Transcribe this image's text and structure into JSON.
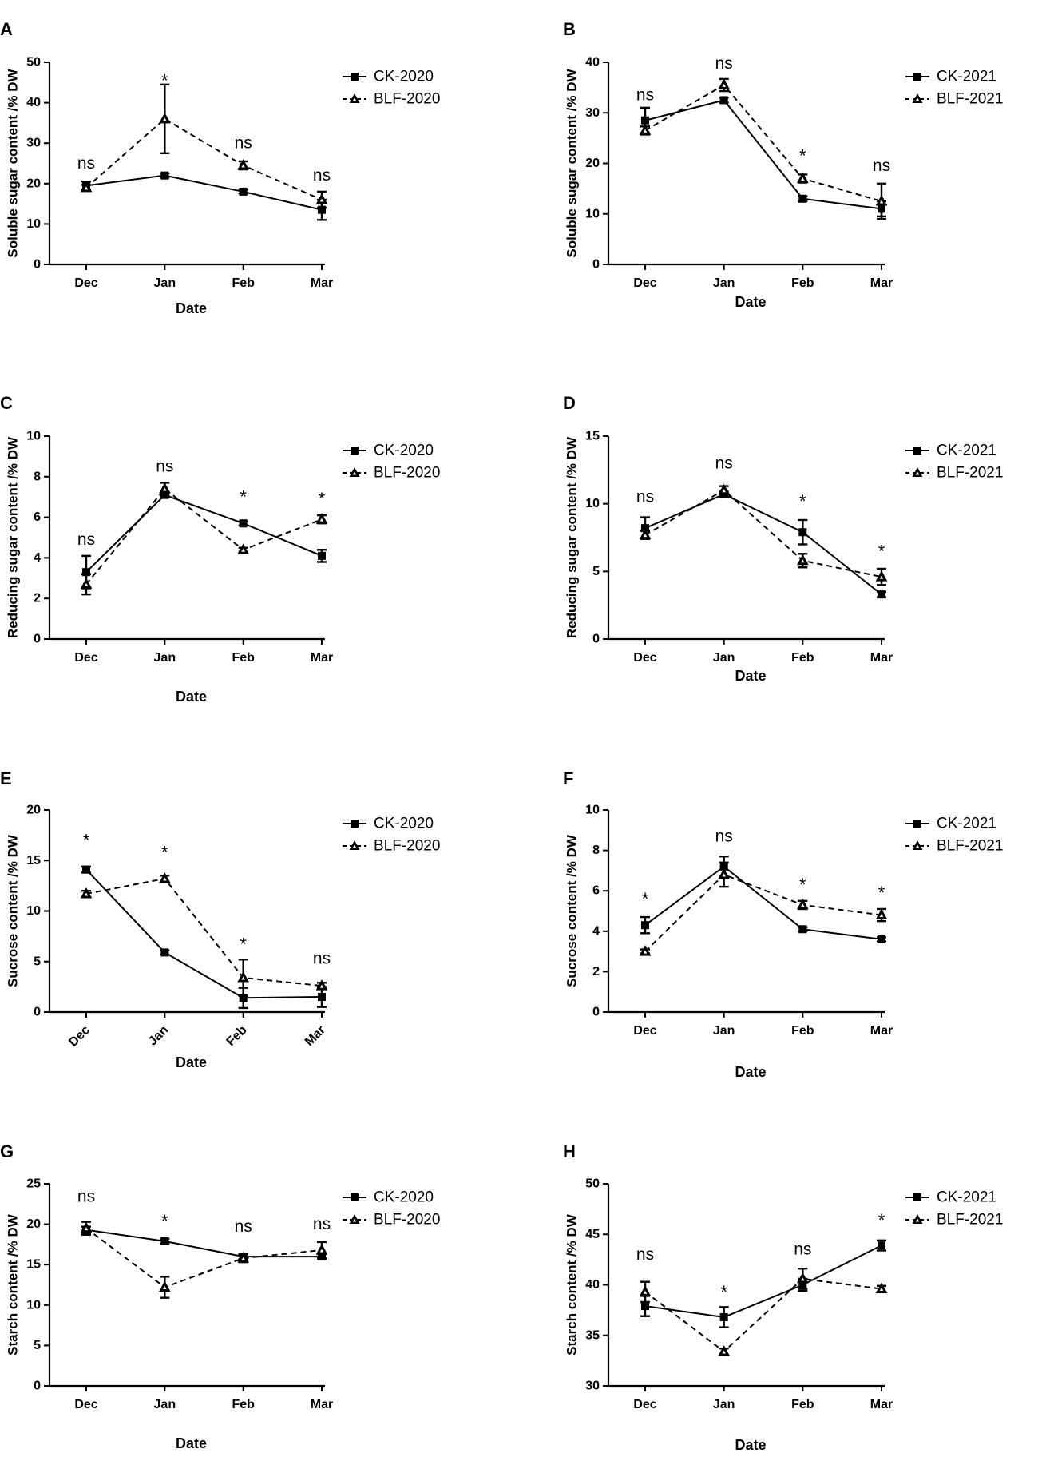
{
  "chart_data": [
    {
      "type": "line",
      "panel": "A",
      "title": "",
      "xlabel": "Date",
      "ylabel": "Soluble sugar content /% DW",
      "ylim": [
        0,
        50
      ],
      "yticks": [
        0,
        10,
        20,
        30,
        40,
        50
      ],
      "categories": [
        "Dec",
        "Jan",
        "Feb",
        "Mar"
      ],
      "rotate_x": false,
      "series": [
        {
          "name": "CK-2020",
          "values": [
            19.5,
            22.0,
            18.0,
            13.5
          ],
          "errors": [
            1.0,
            0.5,
            0.5,
            2.5
          ]
        },
        {
          "name": "BLF-2020",
          "values": [
            19.0,
            36.0,
            24.5,
            16.0
          ],
          "errors": [
            0.7,
            8.5,
            1.0,
            2.0
          ]
        }
      ],
      "annotations": [
        {
          "text": "ns",
          "x": "Dec",
          "y": 25
        },
        {
          "text": "*",
          "x": "Jan",
          "y": 45.5
        },
        {
          "text": "ns",
          "x": "Feb",
          "y": 30
        },
        {
          "text": "ns",
          "x": "Mar",
          "y": 22
        }
      ],
      "legend": "right"
    },
    {
      "type": "line",
      "panel": "B",
      "title": "",
      "xlabel": "Date",
      "ylabel": "Soluble sugar content /% DW",
      "ylim": [
        0,
        40
      ],
      "yticks": [
        0,
        10,
        20,
        30,
        40
      ],
      "categories": [
        "Dec",
        "Jan",
        "Feb",
        "Mar"
      ],
      "rotate_x": false,
      "series": [
        {
          "name": "CK-2021",
          "values": [
            28.5,
            32.5,
            13.0,
            11.0
          ],
          "errors": [
            2.5,
            0.5,
            0.5,
            1.5
          ]
        },
        {
          "name": "BLF-2021",
          "values": [
            26.5,
            35.5,
            17.0,
            12.5
          ],
          "errors": [
            0.8,
            1.2,
            0.8,
            3.5
          ]
        }
      ],
      "annotations": [
        {
          "text": "ns",
          "x": "Dec",
          "y": 33.5
        },
        {
          "text": "ns",
          "x": "Jan",
          "y": 39.8
        },
        {
          "text": "*",
          "x": "Feb",
          "y": 21.5
        },
        {
          "text": "ns",
          "x": "Mar",
          "y": 19.5
        }
      ],
      "legend": "right"
    },
    {
      "type": "line",
      "panel": "C",
      "title": "",
      "xlabel": "Date",
      "ylabel": "Reducing sugar content /% DW",
      "ylim": [
        0,
        10
      ],
      "yticks": [
        0,
        2,
        4,
        6,
        8,
        10
      ],
      "categories": [
        "Dec",
        "Jan",
        "Feb",
        "Mar"
      ],
      "rotate_x": false,
      "series": [
        {
          "name": "CK-2020",
          "values": [
            3.3,
            7.1,
            5.7,
            4.1
          ],
          "errors": [
            0.8,
            0.1,
            0.1,
            0.3
          ]
        },
        {
          "name": "BLF-2020",
          "values": [
            2.7,
            7.4,
            4.4,
            5.9
          ],
          "errors": [
            0.5,
            0.3,
            0.1,
            0.2
          ]
        }
      ],
      "annotations": [
        {
          "text": "ns",
          "x": "Dec",
          "y": 4.9
        },
        {
          "text": "ns",
          "x": "Jan",
          "y": 8.5
        },
        {
          "text": "*",
          "x": "Feb",
          "y": 7.0
        },
        {
          "text": "*",
          "x": "Mar",
          "y": 6.9
        }
      ],
      "legend": "right"
    },
    {
      "type": "line",
      "panel": "D",
      "title": "",
      "xlabel": "Date",
      "ylabel": "Reducing sugar content /% DW",
      "ylim": [
        0,
        15
      ],
      "yticks": [
        0,
        5,
        10,
        15
      ],
      "categories": [
        "Dec",
        "Jan",
        "Feb",
        "Mar"
      ],
      "rotate_x": false,
      "series": [
        {
          "name": "CK-2021",
          "values": [
            8.2,
            10.7,
            7.9,
            3.3
          ],
          "errors": [
            0.8,
            0.2,
            0.9,
            0.2
          ]
        },
        {
          "name": "BLF-2021",
          "values": [
            7.7,
            11.0,
            5.8,
            4.6
          ],
          "errors": [
            0.3,
            0.3,
            0.5,
            0.6
          ]
        }
      ],
      "annotations": [
        {
          "text": "ns",
          "x": "Dec",
          "y": 10.5
        },
        {
          "text": "ns",
          "x": "Jan",
          "y": 13.0
        },
        {
          "text": "*",
          "x": "Feb",
          "y": 10.2
        },
        {
          "text": "*",
          "x": "Mar",
          "y": 6.5
        }
      ],
      "legend": "right"
    },
    {
      "type": "line",
      "panel": "E",
      "title": "",
      "xlabel": "Date",
      "ylabel": "Sucrose content /% DW",
      "ylim": [
        0,
        20
      ],
      "yticks": [
        0,
        5,
        10,
        15,
        20
      ],
      "categories": [
        "Dec",
        "Jan",
        "Feb",
        "Mar"
      ],
      "rotate_x": true,
      "series": [
        {
          "name": "CK-2020",
          "values": [
            14.1,
            5.9,
            1.4,
            1.5
          ],
          "errors": [
            0.3,
            0.2,
            1.0,
            1.0
          ]
        },
        {
          "name": "BLF-2020",
          "values": [
            11.7,
            13.2,
            3.4,
            2.6
          ],
          "errors": [
            0.3,
            0.3,
            1.8,
            0.3
          ]
        }
      ],
      "annotations": [
        {
          "text": "*",
          "x": "Dec",
          "y": 17.0
        },
        {
          "text": "*",
          "x": "Jan",
          "y": 15.8
        },
        {
          "text": "*",
          "x": "Feb",
          "y": 6.7
        },
        {
          "text": "ns",
          "x": "Mar",
          "y": 5.3
        }
      ],
      "legend": "right"
    },
    {
      "type": "line",
      "panel": "F",
      "title": "",
      "xlabel": "Date",
      "ylabel": "Sucrose content /% DW",
      "ylim": [
        0,
        10
      ],
      "yticks": [
        0,
        2,
        4,
        6,
        8,
        10
      ],
      "categories": [
        "Dec",
        "Jan",
        "Feb",
        "Mar"
      ],
      "rotate_x": false,
      "series": [
        {
          "name": "CK-2021",
          "values": [
            4.3,
            7.2,
            4.1,
            3.6
          ],
          "errors": [
            0.4,
            0.5,
            0.1,
            0.1
          ]
        },
        {
          "name": "BLF-2021",
          "values": [
            3.0,
            6.8,
            5.3,
            4.8
          ],
          "errors": [
            0.1,
            0.6,
            0.2,
            0.3
          ]
        }
      ],
      "annotations": [
        {
          "text": "*",
          "x": "Dec",
          "y": 5.6
        },
        {
          "text": "ns",
          "x": "Jan",
          "y": 8.7
        },
        {
          "text": "*",
          "x": "Feb",
          "y": 6.3
        },
        {
          "text": "*",
          "x": "Mar",
          "y": 5.9
        }
      ],
      "legend": "right"
    },
    {
      "type": "line",
      "panel": "G",
      "title": "",
      "xlabel": "Date",
      "ylabel": "Starch content /% DW",
      "ylim": [
        0,
        25
      ],
      "yticks": [
        0,
        5,
        10,
        15,
        20,
        25
      ],
      "categories": [
        "Dec",
        "Jan",
        "Feb",
        "Mar"
      ],
      "rotate_x": false,
      "series": [
        {
          "name": "CK-2020",
          "values": [
            19.3,
            17.9,
            16.0,
            16.0
          ],
          "errors": [
            0.4,
            0.3,
            0.3,
            0.3
          ]
        },
        {
          "name": "BLF-2020",
          "values": [
            19.5,
            12.2,
            15.8,
            16.8
          ],
          "errors": [
            0.8,
            1.3,
            0.5,
            1.0
          ]
        }
      ],
      "annotations": [
        {
          "text": "ns",
          "x": "Dec",
          "y": 23.4
        },
        {
          "text": "*",
          "x": "Jan",
          "y": 20.4
        },
        {
          "text": "ns",
          "x": "Feb",
          "y": 19.7
        },
        {
          "text": "ns",
          "x": "Mar",
          "y": 20.0
        }
      ],
      "legend": "right"
    },
    {
      "type": "line",
      "panel": "H",
      "title": "",
      "xlabel": "Date",
      "ylabel": "Starch content /% DW",
      "ylim": [
        30,
        50
      ],
      "yticks": [
        30,
        35,
        40,
        45,
        50
      ],
      "categories": [
        "Dec",
        "Jan",
        "Feb",
        "Mar"
      ],
      "rotate_x": false,
      "series": [
        {
          "name": "CK-2021",
          "values": [
            37.9,
            36.8,
            40.0,
            43.9
          ],
          "errors": [
            1.0,
            1.0,
            0.6,
            0.5
          ]
        },
        {
          "name": "BLF-2021",
          "values": [
            39.3,
            33.4,
            40.6,
            39.6
          ],
          "errors": [
            1.0,
            0.3,
            1.0,
            0.3
          ]
        }
      ],
      "annotations": [
        {
          "text": "ns",
          "x": "Dec",
          "y": 43.0
        },
        {
          "text": "*",
          "x": "Jan",
          "y": 39.3
        },
        {
          "text": "ns",
          "x": "Feb",
          "y": 43.5
        },
        {
          "text": "*",
          "x": "Mar",
          "y": 46.4
        }
      ],
      "legend": "right"
    }
  ]
}
